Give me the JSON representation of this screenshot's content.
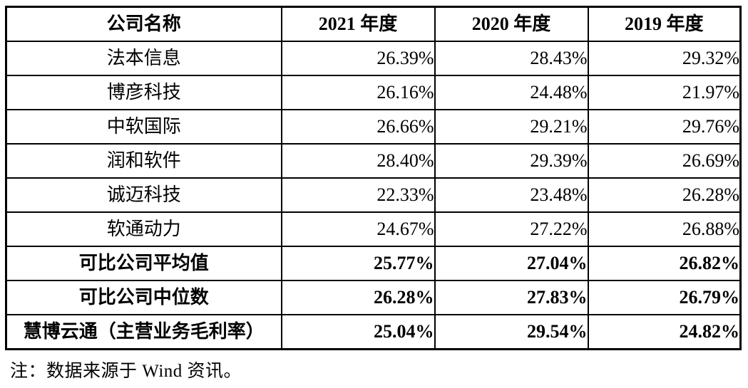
{
  "table": {
    "columns": [
      "公司名称",
      "2021 年度",
      "2020 年度",
      "2019 年度"
    ],
    "rows": [
      {
        "company": "法本信息",
        "values": [
          "26.39%",
          "28.43%",
          "29.32%"
        ],
        "bold": false
      },
      {
        "company": "博彦科技",
        "values": [
          "26.16%",
          "24.48%",
          "21.97%"
        ],
        "bold": false
      },
      {
        "company": "中软国际",
        "values": [
          "26.66%",
          "29.21%",
          "29.76%"
        ],
        "bold": false
      },
      {
        "company": "润和软件",
        "values": [
          "28.40%",
          "29.39%",
          "26.69%"
        ],
        "bold": false
      },
      {
        "company": "诚迈科技",
        "values": [
          "22.33%",
          "23.48%",
          "26.28%"
        ],
        "bold": false
      },
      {
        "company": "软通动力",
        "values": [
          "24.67%",
          "27.22%",
          "26.88%"
        ],
        "bold": false
      },
      {
        "company": "可比公司平均值",
        "values": [
          "25.77%",
          "27.04%",
          "26.82%"
        ],
        "bold": true
      },
      {
        "company": "可比公司中位数",
        "values": [
          "26.28%",
          "27.83%",
          "26.79%"
        ],
        "bold": true
      },
      {
        "company": "慧博云通（主营业务毛利率）",
        "values": [
          "25.04%",
          "29.54%",
          "24.82%"
        ],
        "bold": true
      }
    ]
  },
  "note": "注：数据来源于 Wind 资讯。",
  "colors": {
    "border": "#000000",
    "text": "#000000",
    "background": "#ffffff"
  }
}
